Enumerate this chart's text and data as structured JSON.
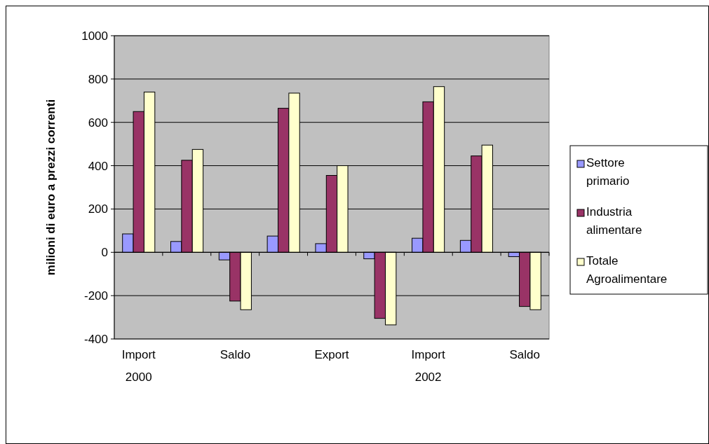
{
  "chart_data": {
    "type": "bar",
    "ylabel": "milioni di euro a prezzi correnti",
    "categories": [
      "Import\n2000",
      null,
      "Saldo",
      null,
      "Export",
      null,
      "Import\n2002",
      null,
      "Saldo"
    ],
    "series": [
      {
        "name": "Settore primario",
        "color": "#9999ff",
        "values": [
          85,
          50,
          -35,
          75,
          40,
          -30,
          65,
          55,
          -20
        ]
      },
      {
        "name": "Industria alimentare",
        "color": "#993366",
        "values": [
          650,
          425,
          -225,
          665,
          355,
          -305,
          695,
          445,
          -250
        ]
      },
      {
        "name": "Totale Agroalimentare",
        "color": "#ffffcc",
        "values": [
          740,
          475,
          -265,
          735,
          400,
          -335,
          765,
          495,
          -265
        ]
      }
    ],
    "ylim": [
      -400,
      1000
    ],
    "yticks": [
      -400,
      -200,
      0,
      200,
      400,
      600,
      800,
      1000
    ],
    "grid": "y",
    "legend": "right"
  }
}
